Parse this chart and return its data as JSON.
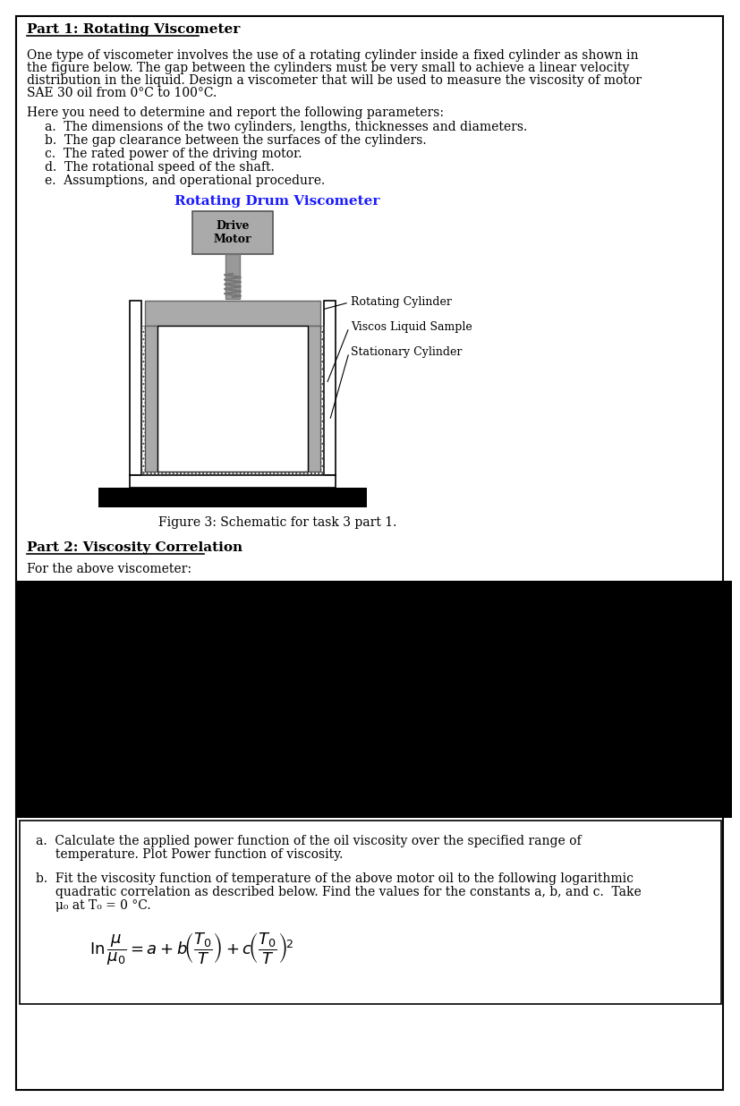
{
  "title_part1": "Part 1: Rotating Viscometer",
  "para1_lines": [
    "One type of viscometer involves the use of a rotating cylinder inside a fixed cylinder as shown in",
    "the figure below. The gap between the cylinders must be very small to achieve a linear velocity",
    "distribution in the liquid. Design a viscometer that will be used to measure the viscosity of motor",
    "SAE 30 oil from 0°C to 100°C."
  ],
  "para2": "Here you need to determine and report the following parameters:",
  "items": [
    "a.  The dimensions of the two cylinders, lengths, thicknesses and diameters.",
    "b.  The gap clearance between the surfaces of the cylinders.",
    "c.  The rated power of the driving motor.",
    "d.  The rotational speed of the shaft.",
    "e.  Assumptions, and operational procedure."
  ],
  "diagram_title": "Rotating Drum Viscometer",
  "drive_motor_label": "Drive\nMotor",
  "label_rotating": "Rotating Cylinder",
  "label_viscos": "Viscos Liquid Sample",
  "label_stationary": "Stationary Cylinder",
  "fig_caption": "Figure 3: Schematic for task 3 part 1.",
  "title_part2": "Part 2: Viscosity Correlation",
  "para3": "For the above viscometer:",
  "item_a_lines": [
    "a.  Calculate the applied power function of the oil viscosity over the specified range of",
    "     temperature. Plot Power function of viscosity."
  ],
  "item_b_lines": [
    "b.  Fit the viscosity function of temperature of the above motor oil to the following logarithmic",
    "     quadratic correlation as described below. Find the values for the constants a, b, and c.  Take",
    "     μ₀ at T₀ = 0 °C."
  ],
  "bg_color": "#ffffff",
  "text_color": "#000000",
  "blue_color": "#1a1aff",
  "border_color": "#000000",
  "motor_color": "#aaaaaa",
  "shaft_color": "#999999",
  "inner_cyl_color": "#aaaaaa",
  "black_color": "#000000"
}
